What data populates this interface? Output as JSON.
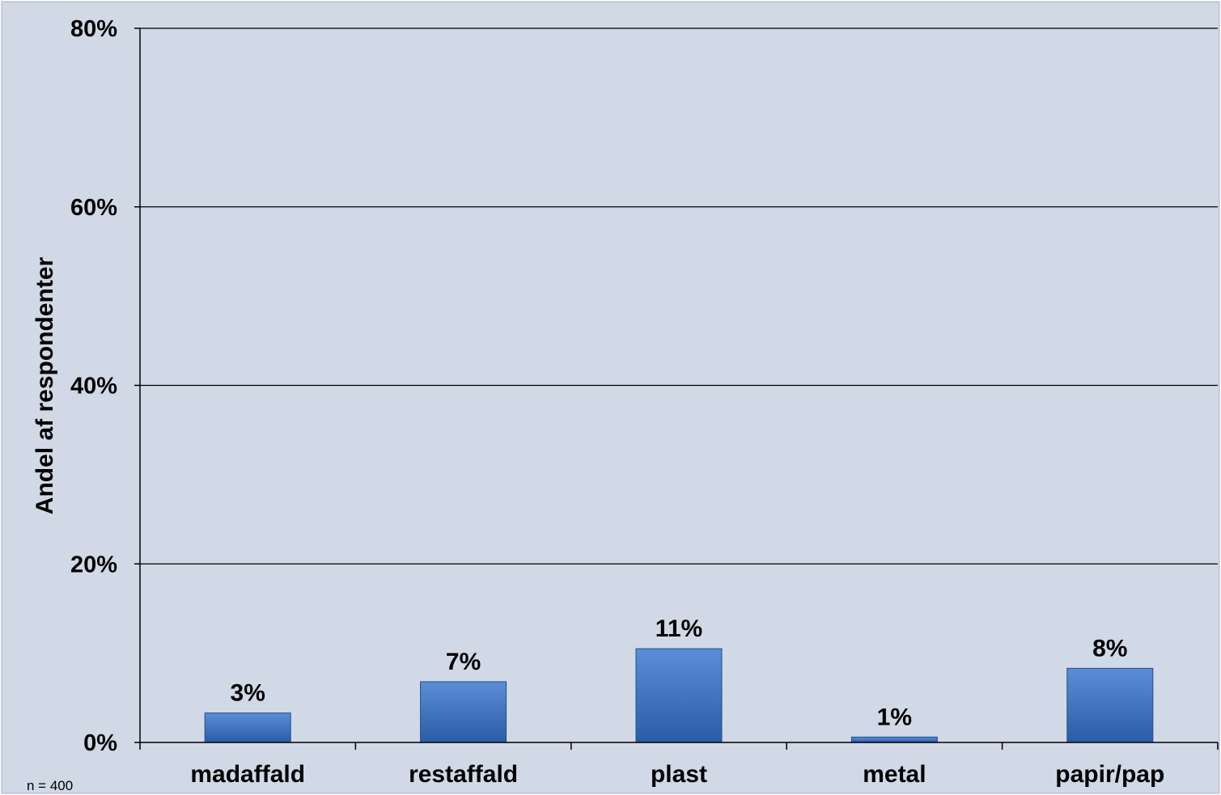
{
  "chart_data": {
    "type": "bar",
    "categories": [
      "madaffald",
      "restaffald",
      "plast",
      "metal",
      "papir/pap"
    ],
    "values": [
      3.3,
      6.8,
      10.5,
      0.6,
      8.3
    ],
    "data_labels": [
      "3%",
      "7%",
      "11%",
      "1%",
      "8%"
    ],
    "ylabel": "Andel af respondenter",
    "xlabel": "",
    "ylim": [
      0,
      80
    ],
    "yticks": [
      0,
      20,
      40,
      60,
      80
    ],
    "ytick_labels": [
      "0%",
      "20%",
      "40%",
      "60%",
      "80%"
    ],
    "grid": true,
    "legend": "none",
    "note": "n = 400"
  },
  "colors": {
    "background": "#d1d8e6",
    "bar_top": "#5b8ed6",
    "bar_bottom": "#2b5ca6",
    "bar_edge": "#1f4e8c",
    "gridline": "#000000"
  }
}
